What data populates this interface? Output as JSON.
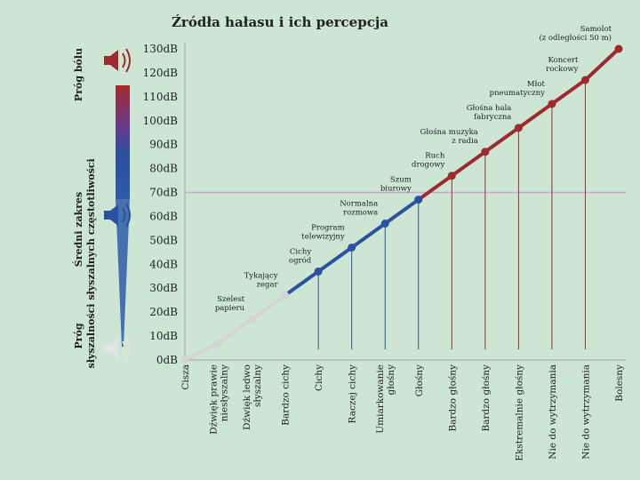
{
  "chart_data": {
    "type": "line",
    "title": "Źródła hałasu i ich percepcja",
    "xlabel": "",
    "ylabel": "",
    "ylim": [
      0,
      130
    ],
    "y_unit": "dB",
    "y_ticks": [
      "0dB",
      "10dB",
      "20dB",
      "30dB",
      "40dB",
      "50dB",
      "60dB",
      "70dB",
      "80dB",
      "90dB",
      "100dB",
      "110dB",
      "120dB",
      "130dB"
    ],
    "grid": false,
    "reference_line": 70,
    "categories": [
      "Cisza",
      "Dźwięk prawie niesłyszalny",
      "Dźwięk ledwo słyszalny",
      "Bardzo cichy",
      "Cichy",
      "Raczej cichy",
      "Umiarkowanie głośny",
      "Głośny",
      "Bardzo głośny",
      "Bardzo głośny",
      "Ekstremalnie głośny",
      "Nie do wytrzymania",
      "Nie do wytrzymania",
      "Bolesny"
    ],
    "category_lines": [
      "Cisza",
      "Dźwięk prawie\nniesłyszalny",
      "Dźwięk ledwo\nsłyszalny",
      "Bardzo cichy",
      "Cichy",
      "Raczej cichy",
      "Umiarkowanie\ngłośny",
      "Głośny",
      "Bardzo głośny",
      "Bardzo głośny",
      "Ekstremalnie głośny",
      "Nie do wytrzymania",
      "Nie do wytrzymania",
      "Bolesny"
    ],
    "values": [
      0,
      7,
      17,
      27,
      37,
      47,
      57,
      67,
      77,
      87,
      97,
      107,
      117,
      130
    ],
    "segment_colors": [
      "#d4d4d4",
      "#d4d4d4",
      "#d4d4d4",
      "#d4d4d4",
      "#2a52a0",
      "#2a52a0",
      "#2a52a0",
      "#2a52a0",
      "#9e2a2f",
      "#9e2a2f",
      "#9e2a2f",
      "#9e2a2f",
      "#9e2a2f",
      "#9e2a2f"
    ],
    "annotations": [
      {
        "at": 2,
        "text": "Szelest\npapieru"
      },
      {
        "at": 3,
        "text": "Tykający\nzegar"
      },
      {
        "at": 4,
        "text": "Cichy\nogród"
      },
      {
        "at": 5,
        "text": "Program\ntelewizyjny"
      },
      {
        "at": 6,
        "text": "Normalna\nrozmowa"
      },
      {
        "at": 7,
        "text": "Szum\nbiurowy"
      },
      {
        "at": 8,
        "text": "Ruch\ndrogowy"
      },
      {
        "at": 9,
        "text": "Głośna muzyka\nz radia"
      },
      {
        "at": 10,
        "text": "Głośna hala\nfabryczna"
      },
      {
        "at": 11,
        "text": "Młot\npneumatyczny"
      },
      {
        "at": 12,
        "text": "Koncert\nrockowy"
      },
      {
        "at": 13,
        "text": "Samolot\n(z odległości 50 m)"
      }
    ]
  },
  "side_labels": {
    "pain": "Próg bólu",
    "range": "Średni zakres\nsłyszalnych częstotliwości",
    "hearing": "Próg\nsłyszalności"
  },
  "colors": {
    "quiet": "#d4d4d4",
    "moderate": "#2a52a0",
    "loud": "#9e2a2f",
    "axis": "#9aa5a0"
  }
}
